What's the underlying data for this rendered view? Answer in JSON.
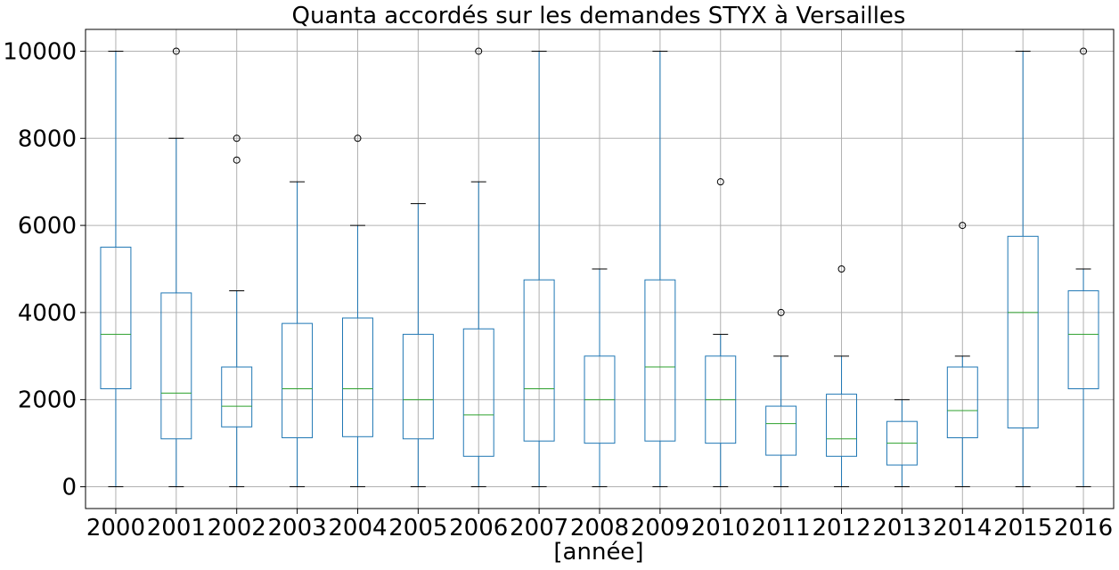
{
  "chart_data": {
    "type": "boxplot",
    "title": "Quanta accordés sur les demandes STYX à Versailles",
    "xlabel": "[année]",
    "ylabel": "",
    "ylim": [
      -500,
      10500
    ],
    "yticks": [
      0,
      2000,
      4000,
      6000,
      8000,
      10000
    ],
    "grid": true,
    "colors": {
      "box": "#1f77b4",
      "median": "#2ca02c",
      "whisker": "#1f77b4",
      "cap": "#000000",
      "flier": "#000000",
      "grid": "#b0b0b0"
    },
    "categories": [
      "2000",
      "2001",
      "2002",
      "2003",
      "2004",
      "2005",
      "2006",
      "2007",
      "2008",
      "2009",
      "2010",
      "2011",
      "2012",
      "2013",
      "2014",
      "2015",
      "2016"
    ],
    "boxes": [
      {
        "whislo": 0,
        "q1": 2250,
        "med": 3500,
        "q3": 5500,
        "whishi": 10000,
        "fliers": []
      },
      {
        "whislo": 0,
        "q1": 1100,
        "med": 2150,
        "q3": 4450,
        "whishi": 8000,
        "fliers": [
          10000
        ]
      },
      {
        "whislo": 0,
        "q1": 1375,
        "med": 1850,
        "q3": 2750,
        "whishi": 4500,
        "fliers": [
          7500,
          8000
        ]
      },
      {
        "whislo": 0,
        "q1": 1125,
        "med": 2250,
        "q3": 3750,
        "whishi": 7000,
        "fliers": []
      },
      {
        "whislo": 0,
        "q1": 1150,
        "med": 2250,
        "q3": 3875,
        "whishi": 6000,
        "fliers": [
          8000
        ]
      },
      {
        "whislo": 0,
        "q1": 1100,
        "med": 2000,
        "q3": 3500,
        "whishi": 6500,
        "fliers": []
      },
      {
        "whislo": 0,
        "q1": 700,
        "med": 1650,
        "q3": 3625,
        "whishi": 7000,
        "fliers": [
          10000
        ]
      },
      {
        "whislo": 0,
        "q1": 1050,
        "med": 2250,
        "q3": 4750,
        "whishi": 10000,
        "fliers": []
      },
      {
        "whislo": 0,
        "q1": 1000,
        "med": 2000,
        "q3": 3000,
        "whishi": 5000,
        "fliers": []
      },
      {
        "whislo": 0,
        "q1": 1050,
        "med": 2750,
        "q3": 4750,
        "whishi": 10000,
        "fliers": []
      },
      {
        "whislo": 0,
        "q1": 1000,
        "med": 2000,
        "q3": 3000,
        "whishi": 3500,
        "fliers": [
          7000
        ]
      },
      {
        "whislo": 0,
        "q1": 725,
        "med": 1450,
        "q3": 1850,
        "whishi": 3000,
        "fliers": [
          4000
        ]
      },
      {
        "whislo": 0,
        "q1": 700,
        "med": 1100,
        "q3": 2125,
        "whishi": 3000,
        "fliers": [
          5000
        ]
      },
      {
        "whislo": 0,
        "q1": 500,
        "med": 1000,
        "q3": 1500,
        "whishi": 2000,
        "fliers": []
      },
      {
        "whislo": 0,
        "q1": 1125,
        "med": 1750,
        "q3": 2750,
        "whishi": 3000,
        "fliers": [
          6000
        ]
      },
      {
        "whislo": 0,
        "q1": 1350,
        "med": 4000,
        "q3": 5750,
        "whishi": 10000,
        "fliers": []
      },
      {
        "whislo": 0,
        "q1": 2250,
        "med": 3500,
        "q3": 4500,
        "whishi": 5000,
        "fliers": [
          10000
        ]
      }
    ]
  }
}
